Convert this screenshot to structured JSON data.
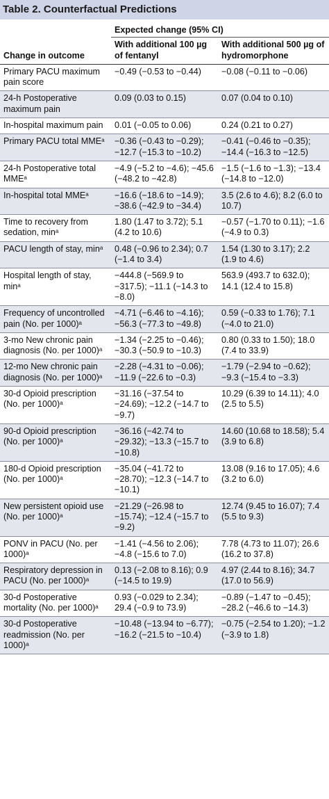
{
  "table": {
    "title": "Table 2. Counterfactual Predictions",
    "col0_header": "Change in outcome",
    "span_header": "Expected change (95% CI)",
    "col1_header": "With additional 100 µg of fentanyl",
    "col2_header": "With additional 500 µg of hydromorphone",
    "footnote_mark": "a",
    "rows": [
      {
        "outcome": "Primary PACU maximum pain score",
        "sup": "",
        "fentanyl": "−0.49 (−0.53 to −0.44)",
        "hydromorphone": "−0.08 (−0.11 to −0.06)"
      },
      {
        "outcome": "24-h Postoperative maximum pain",
        "sup": "",
        "fentanyl": "0.09 (0.03 to 0.15)",
        "hydromorphone": "0.07 (0.04 to 0.10)"
      },
      {
        "outcome": "In-hospital maximum pain",
        "sup": "",
        "fentanyl": "0.01 (−0.05 to 0.06)",
        "hydromorphone": "0.24 (0.21 to 0.27)"
      },
      {
        "outcome": "Primary PACU total MME",
        "sup": "a",
        "fentanyl": "−0.36 (−0.43 to −0.29); −12.7 (−15.3 to −10.2)",
        "hydromorphone": "−0.41 (−0.46 to −0.35); −14.4 (−16.3 to −12.5)"
      },
      {
        "outcome": "24-h Postoperative total MME",
        "sup": "a",
        "fentanyl": "−4.9 (−5.2 to −4.6); −45.6 (−48.2 to −42.8)",
        "hydromorphone": "−1.5 (−1.6 to −1.3); −13.4 (−14.8 to −12.0)"
      },
      {
        "outcome": "In-hospital total MME",
        "sup": "a",
        "fentanyl": "−16.6 (−18.6 to −14.9); −38.6 (−42.9 to −34.4)",
        "hydromorphone": "3.5 (2.6 to 4.6); 8.2 (6.0 to 10.7)"
      },
      {
        "outcome": "Time to recovery from sedation, min",
        "sup": "a",
        "fentanyl": "1.80 (1.47 to 3.72); 5.1 (4.2 to 10.6)",
        "hydromorphone": "−0.57 (−1.70 to 0.11); −1.6 (−4.9 to 0.3)"
      },
      {
        "outcome": "PACU length of stay, min",
        "sup": "a",
        "fentanyl": "0.48 (−0.96 to 2.34); 0.7 (−1.4 to 3.4)",
        "hydromorphone": "1.54 (1.30 to 3.17); 2.2 (1.9 to 4.6)"
      },
      {
        "outcome": "Hospital length of stay, min",
        "sup": "a",
        "fentanyl": "−444.8 (−569.9 to −317.5); −11.1 (−14.3 to −8.0)",
        "hydromorphone": "563.9 (493.7 to 632.0); 14.1 (12.4 to 15.8)"
      },
      {
        "outcome": "Frequency of uncontrolled pain (No. per 1000)",
        "sup": "a",
        "fentanyl": "−4.71 (−6.46 to −4.16); −56.3 (−77.3 to −49.8)",
        "hydromorphone": "0.59 (−0.33 to 1.76); 7.1 (−4.0 to 21.0)"
      },
      {
        "outcome": "3-mo New chronic pain diagnosis (No. per 1000)",
        "sup": "a",
        "fentanyl": "−1.34 (−2.25 to −0.46); −30.3 (−50.9 to −10.3)",
        "hydromorphone": "0.80 (0.33 to 1.50); 18.0 (7.4 to 33.9)"
      },
      {
        "outcome": "12-mo New chronic pain diagnosis (No. per 1000)",
        "sup": "a",
        "fentanyl": "−2.28 (−4.31 to −0.06); −11.9 (−22.6 to −0.3)",
        "hydromorphone": "−1.79 (−2.94 to −0.62); −9.3 (−15.4 to −3.3)"
      },
      {
        "outcome": "30-d Opioid prescription (No. per 1000)",
        "sup": "a",
        "fentanyl": "−31.16 (−37.54 to −24.69); −12.2 (−14.7 to −9.7)",
        "hydromorphone": "10.29 (6.39 to 14.11); 4.0 (2.5 to 5.5)"
      },
      {
        "outcome": "90-d Opioid prescription (No. per 1000)",
        "sup": "a",
        "fentanyl": "−36.16 (−42.74 to −29.32); −13.3 (−15.7 to −10.8)",
        "hydromorphone": "14.60 (10.68 to 18.58); 5.4 (3.9 to 6.8)"
      },
      {
        "outcome": "180-d Opioid prescription (No. per 1000)",
        "sup": "a",
        "fentanyl": "−35.04 (−41.72 to −28.70); −12.3 (−14.7 to −10.1)",
        "hydromorphone": "13.08 (9.16 to 17.05); 4.6 (3.2 to 6.0)"
      },
      {
        "outcome": "New persistent opioid use (No. per 1000)",
        "sup": "a",
        "fentanyl": "−21.29 (−26.98 to −15.74); −12.4 (−15.7 to −9.2)",
        "hydromorphone": "12.74 (9.45 to 16.07); 7.4 (5.5 to 9.3)"
      },
      {
        "outcome": "PONV in PACU (No. per 1000)",
        "sup": "a",
        "fentanyl": "−1.41 (−4.56 to 2.06); −4.8 (−15.6 to 7.0)",
        "hydromorphone": "7.78 (4.73 to 11.07); 26.6 (16.2 to 37.8)"
      },
      {
        "outcome": "Respiratory depression in PACU (No. per 1000)",
        "sup": "a",
        "fentanyl": "0.13 (−2.08 to 8.16); 0.9 (−14.5 to 19.9)",
        "hydromorphone": "4.97 (2.44 to 8.16); 34.7 (17.0 to 56.9)"
      },
      {
        "outcome": "30-d Postoperative mortality (No. per 1000)",
        "sup": "a",
        "fentanyl": "0.93 (−0.029 to 2.34); 29.4 (−0.9 to 73.9)",
        "hydromorphone": "−0.89 (−1.47 to −0.45); −28.2 (−46.6 to −14.3)"
      },
      {
        "outcome": "30-d Postoperative readmission (No. per 1000)",
        "sup": "a",
        "fentanyl": "−10.48 (−13.94 to −6.77); −16.2 (−21.5 to −10.4)",
        "hydromorphone": "−0.75 (−2.54 to 1.20); −1.2 (−3.9 to 1.8)"
      }
    ]
  }
}
